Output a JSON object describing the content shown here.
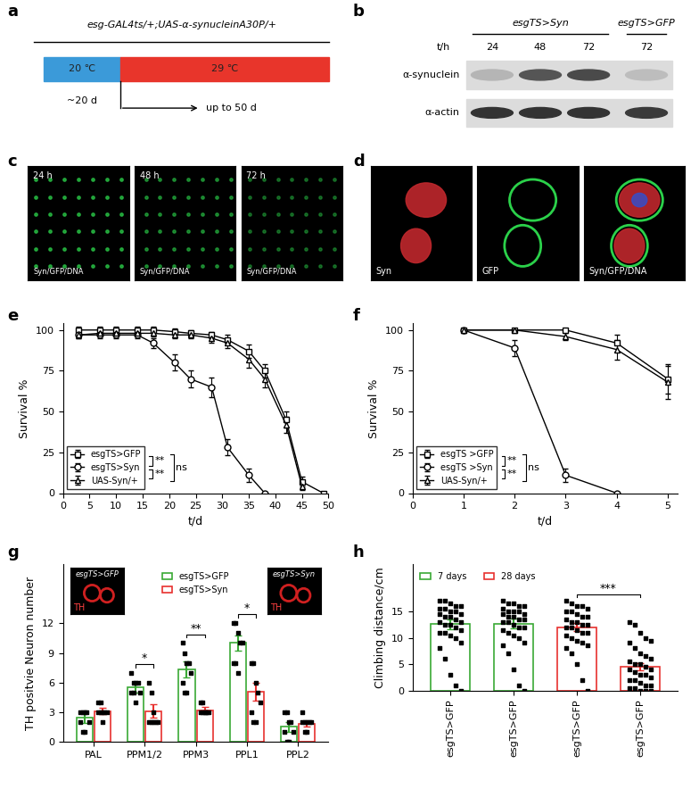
{
  "panels": {
    "a": {
      "label": "a",
      "genotype": "esg-GAL4ts/+;UAS-α-synucleinA30P/+",
      "phases": [
        {
          "temperature": "20 ℃",
          "duration": "~20 d"
        },
        {
          "temperature": "29 ℃",
          "duration": "up to 50 d"
        }
      ]
    },
    "b": {
      "label": "b",
      "lane_header": "t/h",
      "groups": [
        {
          "name": "esgTS>Syn",
          "lanes": [
            "24",
            "48",
            "72"
          ]
        },
        {
          "name": "esgTS>GFP",
          "lanes": [
            "72"
          ]
        }
      ],
      "rows": [
        "α-synuclein",
        "α-actin"
      ]
    },
    "c": {
      "label": "c",
      "images": [
        "24 h",
        "48 h",
        "72 h"
      ],
      "channels": "Syn/GFP/DNA"
    },
    "d": {
      "label": "d",
      "images": [
        "Syn",
        "GFP",
        "Syn/GFP/DNA"
      ]
    }
  },
  "chart_data": [
    {
      "panel": "e",
      "type": "line",
      "x_label": "t/d",
      "y_label": "Survival %",
      "xlim": [
        0,
        50
      ],
      "xticks": [
        0,
        5,
        10,
        15,
        20,
        25,
        30,
        35,
        40,
        45,
        50
      ],
      "ylim": [
        0,
        104
      ],
      "yticks": [
        0,
        25,
        50,
        75,
        100
      ],
      "legend": "lower left",
      "series": [
        {
          "name": "esgTS>GFP",
          "color": "#000000",
          "marker": "square",
          "x": [
            3,
            7,
            10,
            14,
            17,
            21,
            24,
            28,
            31,
            35,
            38,
            42,
            45,
            49
          ],
          "values": [
            100,
            100,
            100,
            100,
            100,
            99,
            98,
            97,
            94,
            87,
            75,
            45,
            7,
            0
          ],
          "errors": [
            2,
            2,
            2,
            2,
            2,
            2,
            2,
            2,
            3,
            4,
            4,
            5,
            3,
            0
          ]
        },
        {
          "name": "esgTS>Syn",
          "color": "#000000",
          "marker": "circle",
          "x": [
            3,
            7,
            10,
            14,
            17,
            21,
            24,
            28,
            31,
            35,
            38
          ],
          "values": [
            97,
            97,
            97,
            97,
            92,
            80,
            70,
            65,
            28,
            11,
            0
          ],
          "errors": [
            2,
            2,
            2,
            2,
            3,
            5,
            5,
            6,
            5,
            4,
            0
          ]
        },
        {
          "name": "UAS-Syn/+",
          "color": "#000000",
          "marker": "triangle",
          "x": [
            3,
            7,
            10,
            14,
            17,
            21,
            24,
            28,
            31,
            35,
            38,
            42,
            45
          ],
          "values": [
            97,
            98,
            98,
            98,
            98,
            97,
            97,
            95,
            92,
            82,
            70,
            42,
            4
          ],
          "errors": [
            2,
            2,
            2,
            2,
            2,
            2,
            2,
            3,
            3,
            5,
            5,
            5,
            2
          ]
        }
      ],
      "significance": [
        {
          "pair": [
            "esgTS>GFP",
            "esgTS>Syn"
          ],
          "label": "**"
        },
        {
          "pair": [
            "esgTS>Syn",
            "UAS-Syn/+"
          ],
          "label": "**"
        },
        {
          "pair": [
            "esgTS>GFP",
            "UAS-Syn/+"
          ],
          "label": "ns"
        }
      ]
    },
    {
      "panel": "f",
      "type": "line",
      "x_label": "t/d",
      "y_label": "Survival %",
      "xlim": [
        0,
        5.2
      ],
      "xticks": [
        0,
        1,
        2,
        3,
        4,
        5
      ],
      "ylim": [
        0,
        104
      ],
      "yticks": [
        0,
        25,
        50,
        75,
        100
      ],
      "legend": "lower left",
      "series": [
        {
          "name": "esgTS >GFP",
          "color": "#000000",
          "marker": "square",
          "x": [
            1,
            2,
            3,
            4,
            5
          ],
          "values": [
            100,
            100,
            100,
            92,
            70
          ],
          "errors": [
            0,
            0,
            0,
            5,
            9
          ]
        },
        {
          "name": "esgTS >Syn",
          "color": "#000000",
          "marker": "circle",
          "x": [
            1,
            2,
            3,
            4
          ],
          "values": [
            100,
            89,
            11,
            0
          ],
          "errors": [
            0,
            5,
            4,
            0
          ]
        },
        {
          "name": "UAS-Syn/+",
          "color": "#000000",
          "marker": "triangle",
          "x": [
            1,
            2,
            3,
            4,
            5
          ],
          "values": [
            100,
            100,
            96,
            88,
            68
          ],
          "errors": [
            0,
            0,
            2,
            6,
            10
          ]
        }
      ],
      "significance": [
        {
          "pair": [
            "esgTS >GFP",
            "esgTS >Syn"
          ],
          "label": "**"
        },
        {
          "pair": [
            "esgTS >Syn",
            "UAS-Syn/+"
          ],
          "label": "**"
        },
        {
          "pair": [
            "esgTS >GFP",
            "UAS-Syn/+"
          ],
          "label": "ns"
        }
      ]
    },
    {
      "panel": "g",
      "type": "bar",
      "y_label": "TH positvie Neuron number",
      "categories": [
        "PAL",
        "PPM1/2",
        "PPM3",
        "PPL1",
        "PPL2"
      ],
      "ylim": [
        0,
        18
      ],
      "yticks": [
        0,
        3,
        6,
        9,
        12
      ],
      "legend": "upper center",
      "series": [
        {
          "name": "esgTS>GFP",
          "color": "#3aa935",
          "values": [
            2.4,
            5.5,
            7.3,
            10.0,
            1.5
          ],
          "errors": [
            0.5,
            0.5,
            0.8,
            0.8,
            0.5
          ],
          "points": [
            [
              3,
              3,
              3,
              3,
              2,
              2,
              1,
              1
            ],
            [
              7,
              6,
              6,
              6,
              5,
              5,
              5,
              4
            ],
            [
              10,
              9,
              8,
              8,
              7,
              6,
              5,
              5
            ],
            [
              12,
              12,
              11,
              10,
              10,
              8,
              8,
              7
            ],
            [
              3,
              3,
              2,
              2,
              1,
              1,
              0,
              0
            ]
          ]
        },
        {
          "name": "esgTS>Syn",
          "color": "#e8312f",
          "values": [
            3.1,
            3.1,
            3.2,
            5.1,
            1.8
          ],
          "errors": [
            0.3,
            0.7,
            0.3,
            0.9,
            0.3
          ],
          "points": [
            [
              4,
              4,
              3,
              3,
              3,
              3,
              3,
              2
            ],
            [
              6,
              5,
              3,
              2,
              2,
              2,
              2,
              2
            ],
            [
              4,
              4,
              3,
              3,
              3,
              3,
              3,
              3
            ],
            [
              8,
              8,
              6,
              5,
              4,
              3,
              2,
              2
            ],
            [
              3,
              2,
              2,
              2,
              2,
              2,
              1,
              1
            ]
          ]
        }
      ],
      "significance": [
        {
          "category": "PPM1/2",
          "label": "*"
        },
        {
          "category": "PPM3",
          "label": "**"
        },
        {
          "category": "PPL1",
          "label": "*"
        }
      ],
      "insets": [
        {
          "title": "esgTS>GFP",
          "label": "TH"
        },
        {
          "title": "esgTS>Syn",
          "label": "TH"
        }
      ]
    },
    {
      "panel": "h",
      "type": "bar",
      "y_label": "Climbing distance/cm",
      "categories": [
        "esgTS>GFP",
        "esgTS>GFP",
        "esgTS>GFP",
        "esgTS>GFP"
      ],
      "ylim": [
        0,
        24
      ],
      "yticks": [
        0,
        5,
        10,
        15
      ],
      "legend": "upper left",
      "series": [
        {
          "name": "7 days",
          "color": "#3aa935",
          "values": [
            12.6,
            12.7,
            null,
            null
          ],
          "errors": [
            0.9,
            0.9,
            null,
            null
          ],
          "points": [
            [
              17,
              17,
              16.5,
              16,
              16,
              15.5,
              15.5,
              15,
              15,
              14.5,
              14.5,
              14,
              14,
              13.5,
              13,
              13,
              12.5,
              12.5,
              12,
              11.5,
              11,
              11,
              10.5,
              10,
              9,
              8,
              6,
              3,
              1,
              0
            ],
            [
              17,
              16.5,
              16.5,
              16,
              16,
              15.5,
              15,
              15,
              15,
              14.5,
              14.5,
              14,
              14,
              13.5,
              13.5,
              13,
              13,
              12.5,
              12,
              12,
              11.5,
              11,
              10.5,
              10,
              9,
              8.5,
              7,
              4,
              1,
              0
            ],
            null,
            null
          ]
        },
        {
          "name": "28 days",
          "color": "#e8312f",
          "values": [
            null,
            null,
            12.0,
            4.5
          ],
          "errors": [
            null,
            null,
            0.8,
            0.7
          ],
          "points": [
            null,
            null,
            [
              17,
              16.5,
              16,
              16,
              15.5,
              15,
              15,
              14.5,
              14,
              14,
              13.5,
              13,
              13,
              12.5,
              12.5,
              12,
              12,
              11.5,
              11,
              11,
              10.5,
              10,
              9.5,
              9,
              8.5,
              8,
              7,
              5,
              2,
              0
            ],
            [
              13,
              12.5,
              11,
              10,
              9.5,
              9,
              8,
              7,
              6.5,
              6,
              5.5,
              5,
              5,
              4.5,
              4,
              4,
              3.5,
              3,
              3,
              2.5,
              2,
              2,
              1.5,
              1,
              1,
              0.5,
              0.5,
              0,
              0,
              0
            ]
          ]
        }
      ],
      "significance": [
        {
          "series": "28 days",
          "label": "***"
        }
      ]
    }
  ]
}
